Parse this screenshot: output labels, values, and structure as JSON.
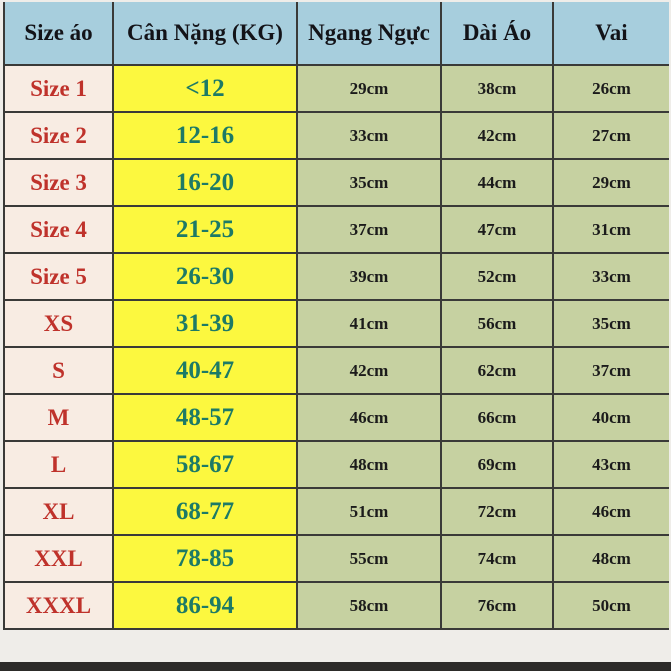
{
  "table": {
    "columns": [
      {
        "key": "size",
        "label": "Size áo"
      },
      {
        "key": "weight",
        "label": "Cân Nặng (KG)"
      },
      {
        "key": "chest",
        "label": "Ngang Ngực"
      },
      {
        "key": "length",
        "label": "Dài Áo"
      },
      {
        "key": "shoulder",
        "label": "Vai"
      }
    ],
    "rows": [
      {
        "size": "Size 1",
        "weight": "<12",
        "chest": "29cm",
        "length": "38cm",
        "shoulder": "26cm"
      },
      {
        "size": "Size 2",
        "weight": "12-16",
        "chest": "33cm",
        "length": "42cm",
        "shoulder": "27cm"
      },
      {
        "size": "Size 3",
        "weight": "16-20",
        "chest": "35cm",
        "length": "44cm",
        "shoulder": "29cm"
      },
      {
        "size": "Size 4",
        "weight": "21-25",
        "chest": "37cm",
        "length": "47cm",
        "shoulder": "31cm"
      },
      {
        "size": "Size 5",
        "weight": "26-30",
        "chest": "39cm",
        "length": "52cm",
        "shoulder": "33cm"
      },
      {
        "size": "XS",
        "weight": "31-39",
        "chest": "41cm",
        "length": "56cm",
        "shoulder": "35cm"
      },
      {
        "size": "S",
        "weight": "40-47",
        "chest": "42cm",
        "length": "62cm",
        "shoulder": "37cm"
      },
      {
        "size": "M",
        "weight": "48-57",
        "chest": "46cm",
        "length": "66cm",
        "shoulder": "40cm"
      },
      {
        "size": "L",
        "weight": "58-67",
        "chest": "48cm",
        "length": "69cm",
        "shoulder": "43cm"
      },
      {
        "size": "XL",
        "weight": "68-77",
        "chest": "51cm",
        "length": "72cm",
        "shoulder": "46cm"
      },
      {
        "size": "XXL",
        "weight": "78-85",
        "chest": "55cm",
        "length": "74cm",
        "shoulder": "48cm"
      },
      {
        "size": "XXXL",
        "weight": "86-94",
        "chest": "58cm",
        "length": "76cm",
        "shoulder": "50cm"
      }
    ]
  },
  "colors": {
    "header_bg": "#a7cedd",
    "size_col_bg": "#f8ece3",
    "size_text": "#bf322b",
    "weight_col_bg": "#fcf83f",
    "weight_text": "#1d7a66",
    "metric_col_bg": "#c6d1a1",
    "metric_text": "#1b1b1b",
    "border": "#3a3a38",
    "bottom_strip": "#2c2b29"
  }
}
